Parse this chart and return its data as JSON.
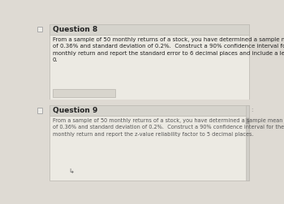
{
  "q8_title": "Question 8",
  "q8_body": "From a sample of 50 monthly returns of a stock, you have determined a sample mean\nof 0.36% and standard deviation of 0.2%.  Construct a 90% confidence interval for the\nmonthly return and report the standard error to 6 decimal places and include a leading\n0.",
  "q9_title": "Question 9",
  "q9_body": "From a sample of 50 monthly returns of a stock, you have determined a sample mean\nof 0.36% and standard deviation of 0.2%.  Construct a 90% confidence interval for the\nmonthly return and report the z-value reliability factor to 5 decimal places.",
  "bg_color": "#dedad3",
  "card_color": "#eceae3",
  "header_bg": "#d5d3cc",
  "input_box_color": "#d8d5cd",
  "text_color": "#222222",
  "title_fontsize": 6.5,
  "body_fontsize": 5.0,
  "checkbox_color": "#aaaaaa",
  "scroll_color": "#b0aeaa"
}
